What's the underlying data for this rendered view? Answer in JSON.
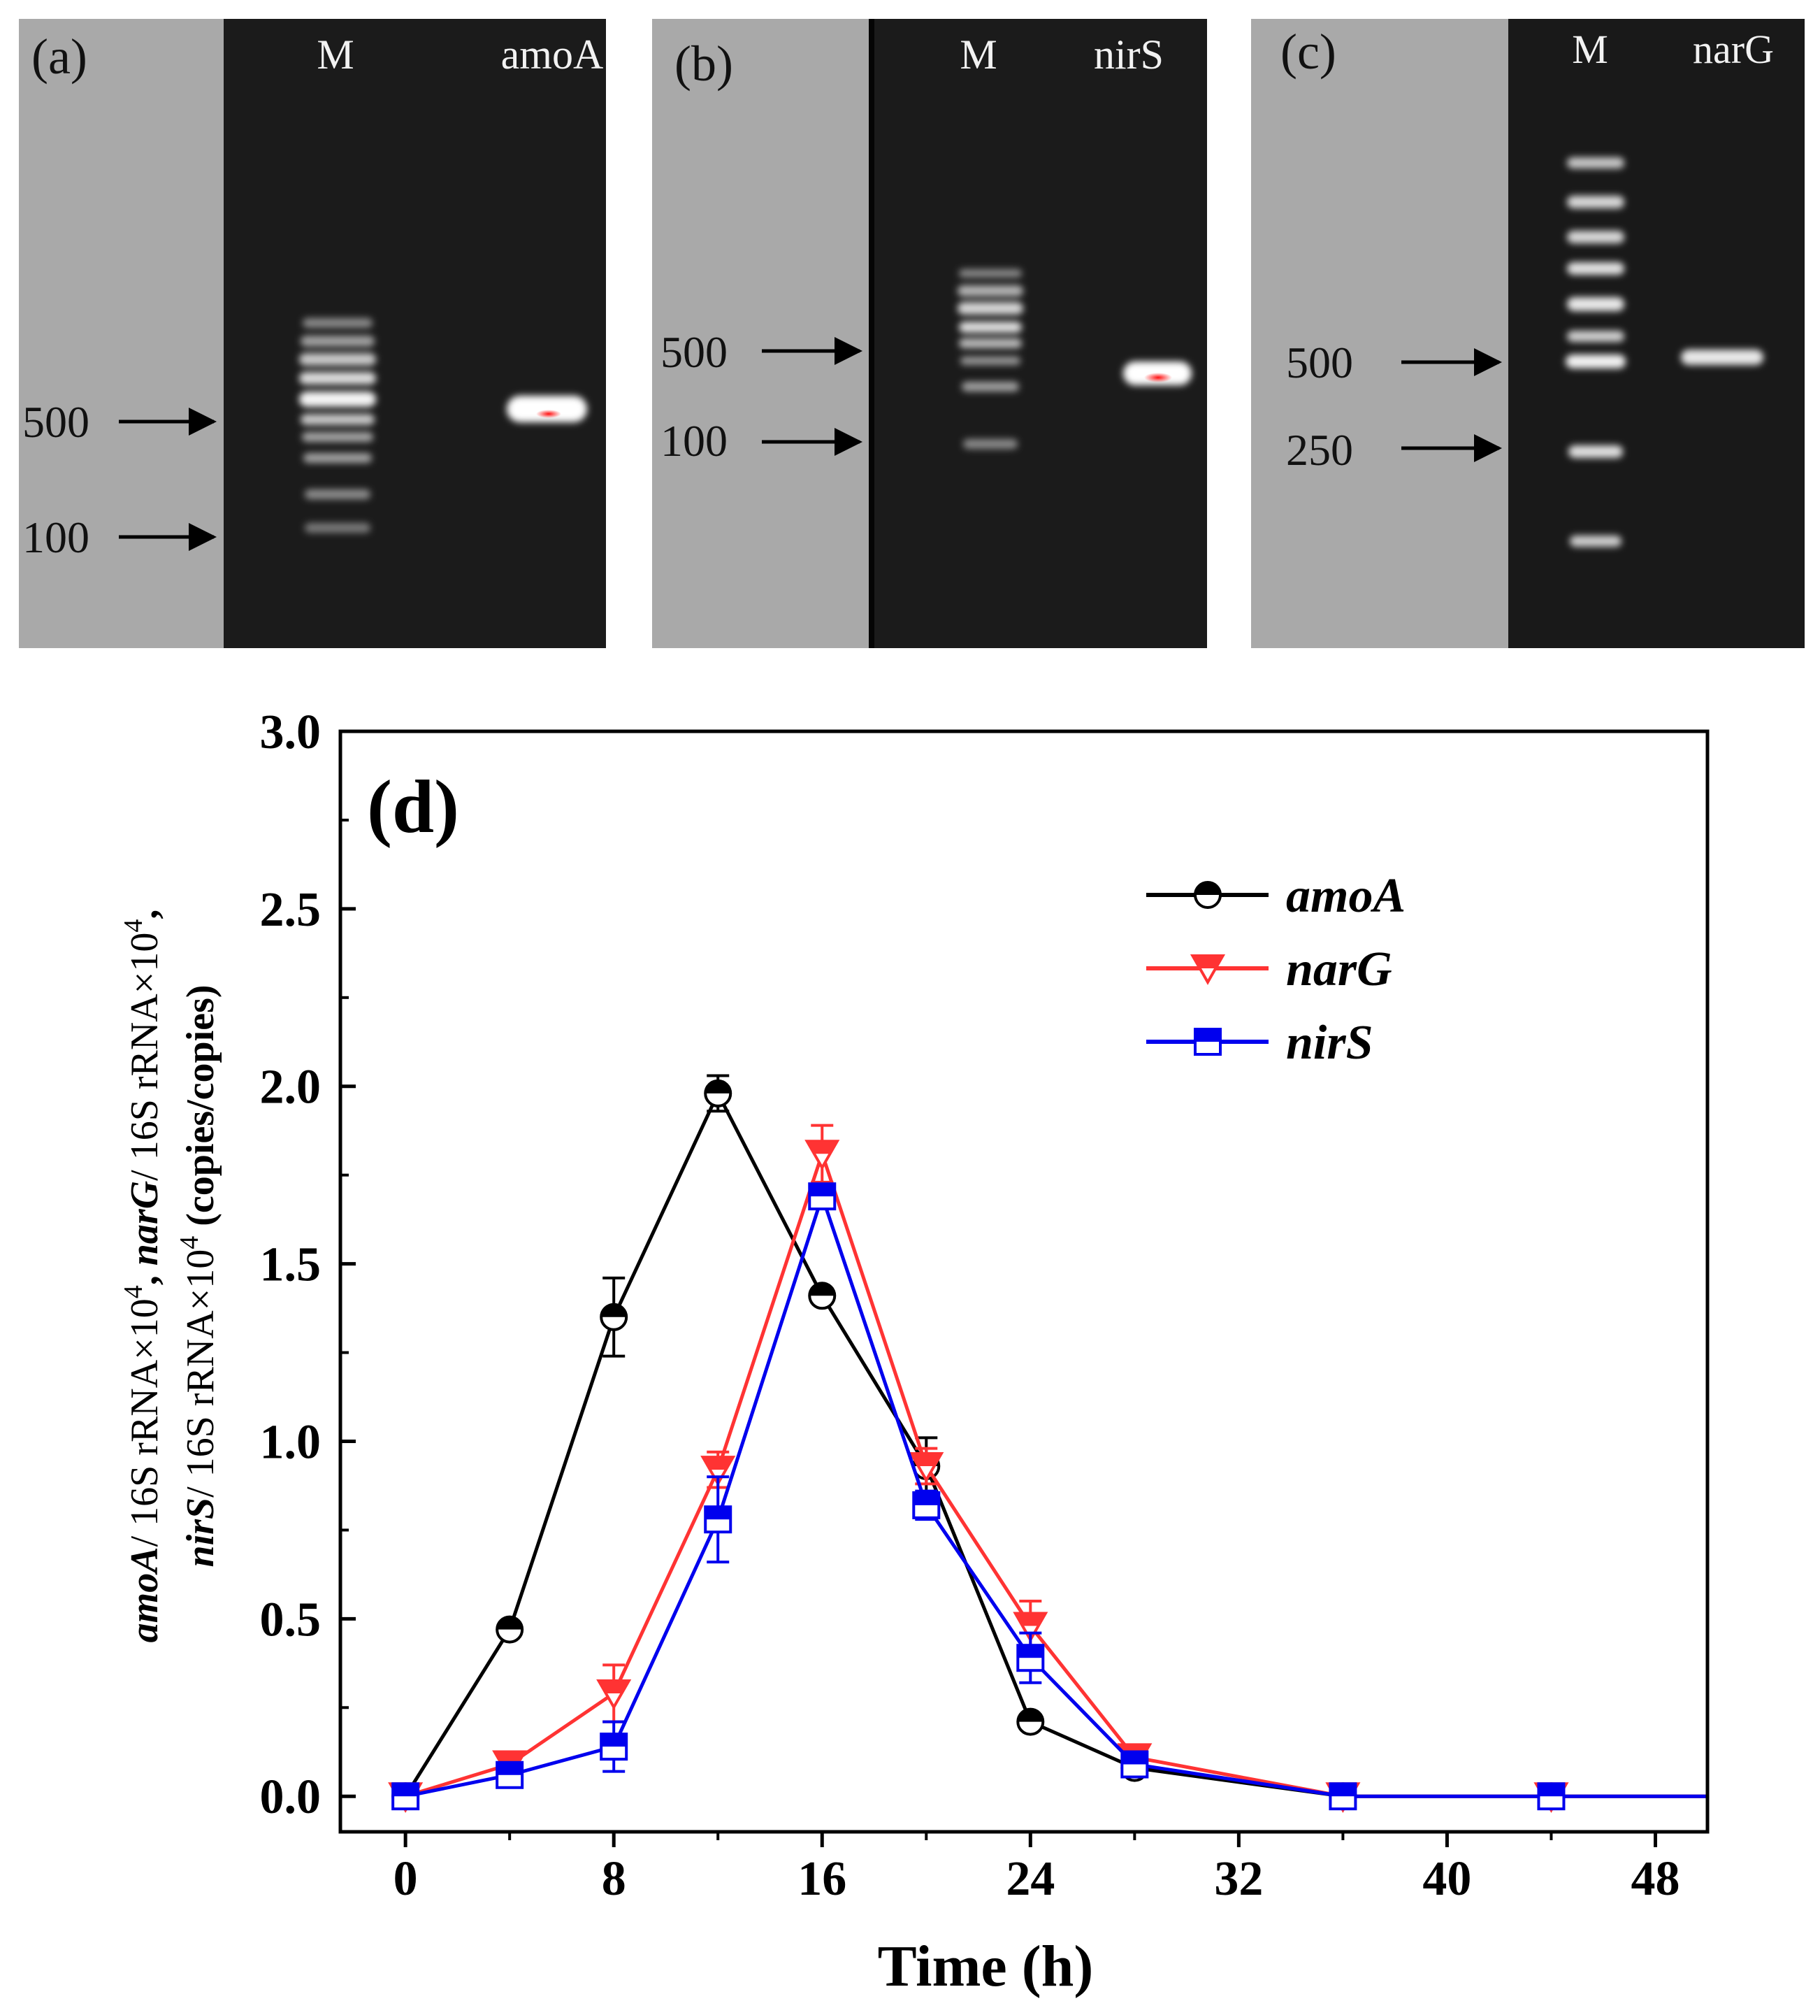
{
  "panels": [
    {
      "id": "a",
      "label": "(a)",
      "lanes": [
        "M",
        "amoA"
      ],
      "markers": [
        {
          "text": "500"
        },
        {
          "text": "100"
        }
      ]
    },
    {
      "id": "b",
      "label": "(b)",
      "lanes": [
        "M",
        "nirS"
      ],
      "markers": [
        {
          "text": "500"
        },
        {
          "text": "100"
        }
      ]
    },
    {
      "id": "c",
      "label": "(c)",
      "lanes": [
        "M",
        "narG"
      ],
      "markers": [
        {
          "text": "500"
        },
        {
          "text": "250"
        }
      ]
    }
  ],
  "colors": {
    "amoA": "#000000",
    "narG": "#ff3333",
    "nirS": "#0000ee",
    "gel_bg": "#1c1c1c",
    "gel_frame": "#a8a8a8"
  },
  "chart_data": {
    "type": "line",
    "panel_label": "(d)",
    "xlabel": "Time (h)",
    "ylabel_parts": [
      "amoA",
      "/ 16S rRNA×10",
      "4",
      ", ",
      "narG",
      "/ 16S rRNA×10",
      "4",
      ",",
      "nirS",
      "/ 16S rRNA×10",
      "4",
      " (copies/copies)"
    ],
    "xlim": [
      -2.5,
      50
    ],
    "ylim": [
      -0.1,
      3.0
    ],
    "xticks": [
      0,
      8,
      16,
      24,
      32,
      40,
      48
    ],
    "yticks": [
      0.0,
      0.5,
      1.0,
      1.5,
      2.0,
      2.5,
      3.0
    ],
    "ytick_labels": [
      "0.0",
      "0.5",
      "1.0",
      "1.5",
      "2.0",
      "2.5",
      "3.0"
    ],
    "legend_position": "top-right",
    "series": [
      {
        "name": "amoA",
        "marker": "circle",
        "x": [
          0,
          4,
          8,
          12,
          16,
          20,
          24,
          28,
          36,
          44
        ],
        "values": [
          0.0,
          0.47,
          1.35,
          1.98,
          1.41,
          0.93,
          0.21,
          0.08,
          0.0,
          0.0
        ],
        "errors": [
          0.0,
          0.02,
          0.11,
          0.05,
          0.02,
          0.08,
          0.02,
          0.02,
          0.0,
          0.0
        ]
      },
      {
        "name": "narG",
        "marker": "triangle-down",
        "x": [
          0,
          4,
          8,
          12,
          16,
          20,
          24,
          28,
          36,
          44
        ],
        "values": [
          0.0,
          0.09,
          0.29,
          0.92,
          1.81,
          0.93,
          0.48,
          0.11,
          0.0,
          0.0
        ],
        "errors": [
          0.0,
          0.01,
          0.08,
          0.05,
          0.08,
          0.05,
          0.07,
          0.02,
          0.0,
          0.0
        ]
      },
      {
        "name": "nirS",
        "marker": "square",
        "x": [
          0,
          4,
          8,
          12,
          16,
          20,
          24,
          28,
          36,
          44
        ],
        "values": [
          0.0,
          0.06,
          0.14,
          0.78,
          1.69,
          0.82,
          0.39,
          0.09,
          0.0,
          0.0
        ],
        "errors": [
          0.0,
          0.01,
          0.07,
          0.12,
          0.03,
          0.04,
          0.07,
          0.02,
          0.0,
          0.0
        ]
      }
    ]
  }
}
